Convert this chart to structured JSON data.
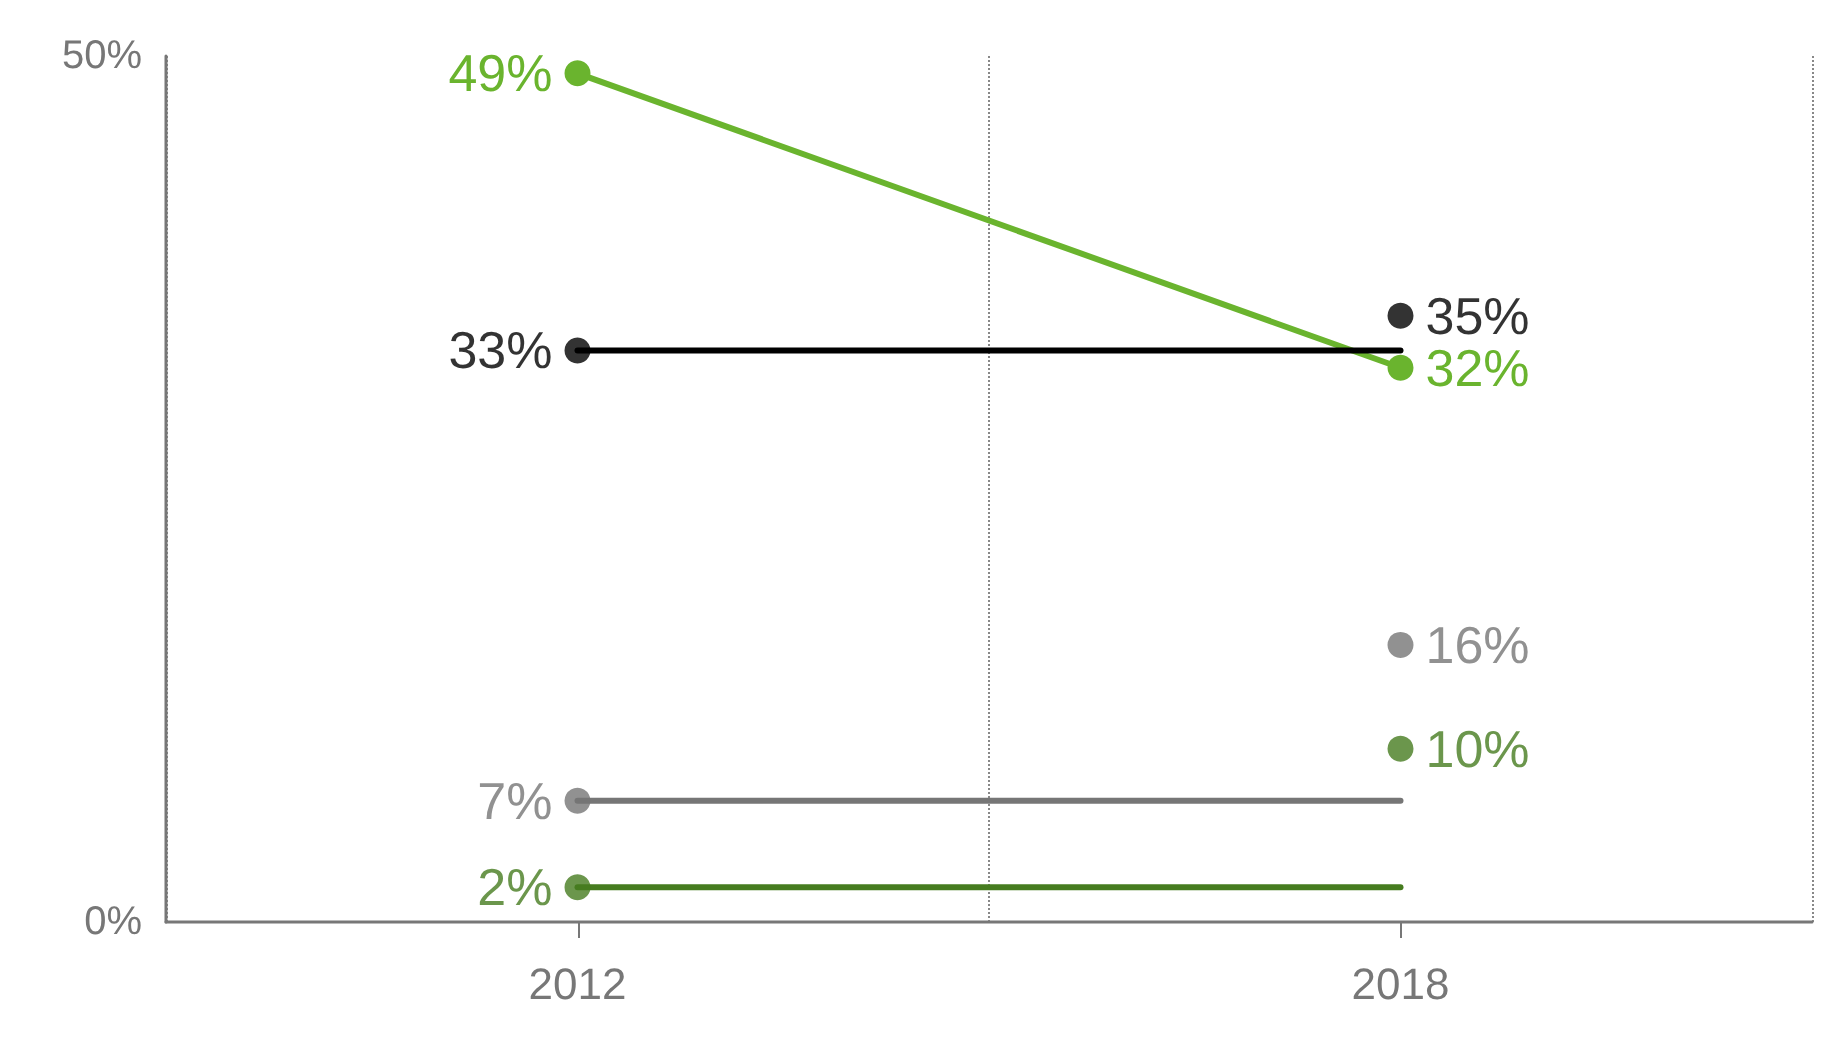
{
  "chart_data": {
    "type": "line",
    "categories": [
      "2012",
      "2018"
    ],
    "ylim": [
      0,
      50
    ],
    "yticks": [
      {
        "value": 0,
        "label": "0%"
      },
      {
        "value": 50,
        "label": "50%"
      }
    ],
    "grid": "x",
    "series": [
      {
        "color": "#6ab42e",
        "values": [
          49,
          32
        ],
        "marker": "circle",
        "value_labels": [
          "49%",
          "32%"
        ]
      },
      {
        "color": "#000000",
        "values": [
          33,
          33
        ],
        "marker": "none"
      },
      {
        "type": "scatter",
        "color": "#000000",
        "values": [
          33,
          35
        ],
        "marker": "circle",
        "value_labels": [
          "33%",
          "35%"
        ]
      },
      {
        "color": "#767676",
        "values": [
          7,
          7
        ],
        "marker": "none"
      },
      {
        "type": "scatter",
        "color": "#767676",
        "values": [
          7,
          16
        ],
        "marker": "circle",
        "value_labels": [
          "7%",
          "16%"
        ]
      },
      {
        "color": "#467c1f",
        "values": [
          2,
          2
        ],
        "marker": "none"
      },
      {
        "type": "scatter",
        "color": "#467c1f",
        "values": [
          2,
          10
        ],
        "marker": "circle",
        "value_labels": [
          "2%",
          "10%"
        ]
      }
    ]
  }
}
